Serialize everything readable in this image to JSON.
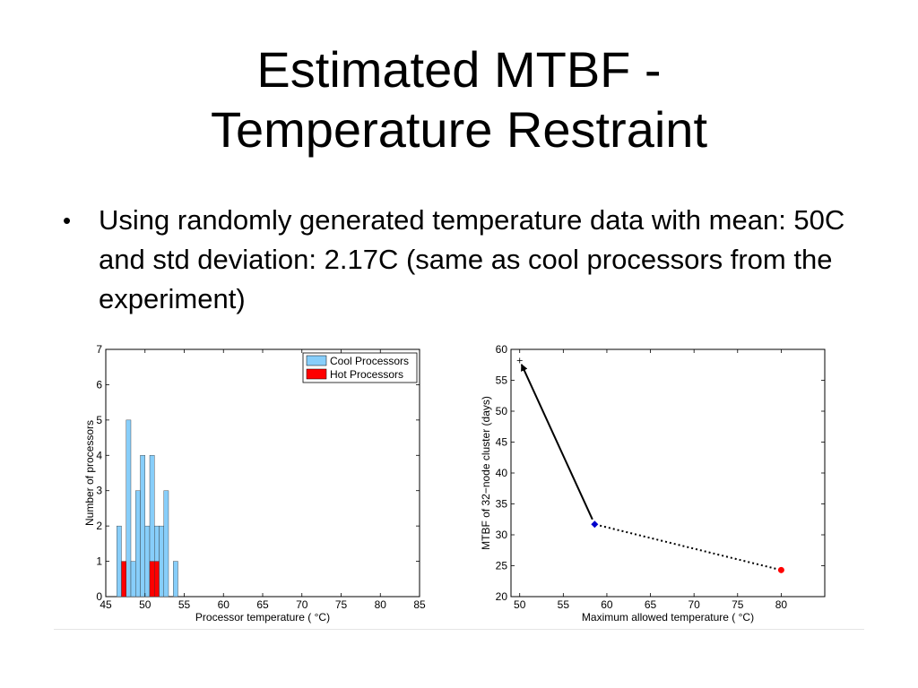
{
  "slide": {
    "title_line1": "Estimated MTBF -",
    "title_line2": "Temperature Restraint",
    "bullet": "Using randomly generated temperature data with mean: 50C and std deviation: 2.17C (same as cool processors from the experiment)"
  },
  "colors": {
    "cool": "#87CEFA",
    "hot": "#FF0000",
    "marker_blue": "#0000CC",
    "marker_red": "#FF0000"
  },
  "chart_data": [
    {
      "type": "bar",
      "xlabel": "Processor temperature ( °C)",
      "ylabel": "Number of processors",
      "xlim": [
        45,
        85
      ],
      "ylim": [
        0,
        7
      ],
      "xticks": [
        45,
        50,
        55,
        60,
        65,
        70,
        75,
        80,
        85
      ],
      "yticks": [
        0,
        1,
        2,
        3,
        4,
        5,
        6,
        7
      ],
      "legend_position": "top-right",
      "bin_width": 0.6,
      "series": [
        {
          "name": "Cool Processors",
          "color": "#87CEFA",
          "x": [
            46.7,
            47.9,
            48.5,
            49.1,
            49.7,
            50.3,
            50.9,
            51.5,
            52.1,
            52.7,
            53.9
          ],
          "values": [
            2,
            5,
            1,
            3,
            4,
            2,
            4,
            2,
            2,
            3,
            1
          ]
        },
        {
          "name": "Hot Processors",
          "color": "#FF0000",
          "x": [
            47.3,
            50.9,
            51.5
          ],
          "values": [
            1,
            1,
            1
          ]
        }
      ]
    },
    {
      "type": "line",
      "xlabel": "Maximum allowed temperature ( °C)",
      "ylabel": "MTBF of 32−node cluster (days)",
      "xlim": [
        49,
        85
      ],
      "ylim": [
        20,
        60
      ],
      "xticks": [
        50,
        55,
        60,
        65,
        70,
        75,
        80
      ],
      "yticks": [
        20,
        25,
        30,
        35,
        40,
        45,
        50,
        55,
        60
      ],
      "points": [
        {
          "x": 50,
          "y": 58.2,
          "marker": "plus"
        },
        {
          "x": 58.6,
          "y": 31.7,
          "marker": "diamond"
        },
        {
          "x": 80,
          "y": 24.3,
          "marker": "circle"
        }
      ],
      "segments": [
        {
          "from": 1,
          "to": 0,
          "style": "solid-arrow"
        },
        {
          "from": 1,
          "to": 2,
          "style": "dotted"
        }
      ]
    }
  ]
}
